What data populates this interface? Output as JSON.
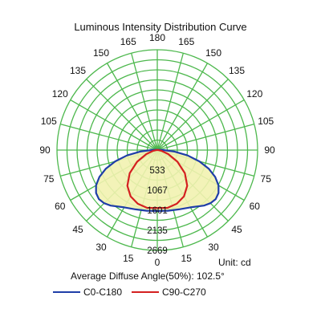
{
  "chart_data": {
    "type": "polar",
    "title": "Luminous Intensity Distribution Curve",
    "unit_label": "Unit: cd",
    "diffuse_angle_label": "Average Diffuse Angle(50%): 102.5°",
    "radial_ticks": [
      533,
      1067,
      1601,
      2135,
      2669
    ],
    "radial_max": 2669,
    "angle_labels_left": [
      "165",
      "150",
      "135",
      "120",
      "105",
      "90",
      "75",
      "60",
      "45",
      "30",
      "15"
    ],
    "angle_labels_right": [
      "165",
      "150",
      "135",
      "120",
      "105",
      "90",
      "75",
      "60",
      "45",
      "30",
      "15"
    ],
    "angle_label_top": "180",
    "angle_label_bottom": "0",
    "grid_color": "#4db84d",
    "fill_color": "#f2f2b0",
    "series": [
      {
        "name": "C0-C180",
        "color": "#1f3ea8",
        "angles": [
          0,
          10,
          20,
          30,
          40,
          45,
          50,
          55,
          60,
          65,
          70,
          75,
          80,
          85,
          90,
          100,
          110,
          130,
          150,
          170,
          180
        ],
        "values": [
          1620,
          1640,
          1680,
          1760,
          1930,
          2000,
          2030,
          1990,
          1880,
          1700,
          1460,
          1160,
          820,
          460,
          160,
          50,
          25,
          12,
          6,
          3,
          2
        ]
      },
      {
        "name": "C90-C270",
        "color": "#d42020",
        "angles": [
          0,
          10,
          20,
          30,
          40,
          50,
          60,
          70,
          80,
          90,
          100,
          120,
          150,
          180
        ],
        "values": [
          1540,
          1560,
          1520,
          1420,
          1240,
          960,
          620,
          310,
          110,
          25,
          8,
          4,
          2,
          1
        ]
      }
    ]
  }
}
